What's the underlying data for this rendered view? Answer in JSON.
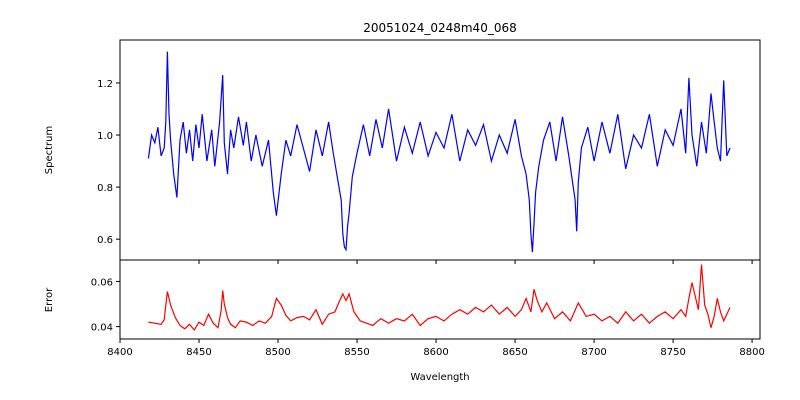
{
  "chart_data": [
    {
      "panel": "top",
      "type": "line",
      "title": "20051024_0248m40_068",
      "xlabel": "",
      "ylabel": "Spectrum",
      "xlim": [
        8400,
        8805
      ],
      "ylim": [
        0.52,
        1.365
      ],
      "xticks": [
        8400,
        8450,
        8500,
        8550,
        8600,
        8650,
        8700,
        8750,
        8800
      ],
      "xtick_labels_visible": false,
      "yticks": [
        0.6,
        0.8,
        1.0,
        1.2
      ],
      "ytick_labels": [
        "0.6",
        "0.8",
        "1.0",
        "1.2"
      ],
      "grid": false,
      "series": [
        {
          "color": "#0000ff",
          "x": [
            8418,
            8420,
            8422,
            8424,
            8426,
            8428,
            8429,
            8430,
            8431,
            8432,
            8434,
            8436,
            8438,
            8440,
            8442,
            8444,
            8446,
            8448,
            8450,
            8452,
            8455,
            8458,
            8460,
            8463,
            8465,
            8466,
            8468,
            8470,
            8472,
            8475,
            8478,
            8480,
            8483,
            8486,
            8490,
            8494,
            8497,
            8499,
            8502,
            8505,
            8508,
            8512,
            8516,
            8520,
            8524,
            8528,
            8532,
            8535,
            8538,
            8540,
            8541,
            8542,
            8543,
            8544,
            8545,
            8547,
            8550,
            8554,
            8558,
            8562,
            8566,
            8570,
            8575,
            8580,
            8585,
            8590,
            8595,
            8600,
            8605,
            8610,
            8615,
            8620,
            8625,
            8630,
            8635,
            8640,
            8645,
            8650,
            8654,
            8657,
            8659,
            8660,
            8661,
            8662,
            8663,
            8665,
            8668,
            8672,
            8676,
            8680,
            8684,
            8688,
            8689,
            8690,
            8692,
            8696,
            8700,
            8705,
            8710,
            8715,
            8720,
            8725,
            8730,
            8735,
            8740,
            8745,
            8750,
            8755,
            8758,
            8760,
            8762,
            8765,
            8768,
            8771,
            8774,
            8776,
            8778,
            8780,
            8782,
            8784,
            8786
          ],
          "y": [
            0.91,
            1.0,
            0.97,
            1.03,
            0.92,
            0.95,
            1.05,
            1.32,
            1.08,
            0.98,
            0.85,
            0.76,
            0.98,
            1.05,
            0.93,
            1.02,
            0.9,
            1.04,
            0.95,
            1.08,
            0.9,
            1.02,
            0.88,
            1.05,
            1.23,
            0.97,
            0.85,
            1.02,
            0.95,
            1.07,
            0.96,
            1.05,
            0.9,
            1.0,
            0.88,
            0.98,
            0.78,
            0.69,
            0.85,
            0.98,
            0.92,
            1.04,
            0.95,
            0.86,
            1.02,
            0.92,
            1.05,
            0.93,
            0.82,
            0.75,
            0.62,
            0.57,
            0.56,
            0.65,
            0.7,
            0.84,
            0.93,
            1.04,
            0.92,
            1.06,
            0.95,
            1.1,
            0.9,
            1.03,
            0.93,
            1.05,
            0.92,
            1.01,
            0.95,
            1.08,
            0.9,
            1.02,
            0.96,
            1.04,
            0.9,
            1.0,
            0.93,
            1.06,
            0.92,
            0.85,
            0.75,
            0.62,
            0.55,
            0.66,
            0.78,
            0.88,
            0.98,
            1.05,
            0.9,
            1.07,
            0.92,
            0.75,
            0.63,
            0.82,
            0.95,
            1.03,
            0.9,
            1.05,
            0.93,
            1.08,
            0.87,
            1.0,
            0.95,
            1.08,
            0.88,
            1.02,
            0.96,
            1.1,
            0.93,
            1.22,
            1.0,
            0.88,
            1.05,
            0.93,
            1.16,
            1.05,
            0.95,
            0.9,
            1.21,
            0.92,
            0.95
          ]
        }
      ]
    },
    {
      "panel": "bottom",
      "type": "line",
      "title": "",
      "xlabel": "Wavelength",
      "ylabel": "Error",
      "xlim": [
        8400,
        8805
      ],
      "ylim": [
        0.0345,
        0.0695
      ],
      "xticks": [
        8400,
        8450,
        8500,
        8550,
        8600,
        8650,
        8700,
        8750,
        8800
      ],
      "xtick_labels": [
        "8400",
        "8450",
        "8500",
        "8550",
        "8600",
        "8650",
        "8700",
        "8750",
        "8800"
      ],
      "yticks": [
        0.04,
        0.06
      ],
      "ytick_labels": [
        "0.04",
        "0.06"
      ],
      "grid": false,
      "series": [
        {
          "color": "#ff0000",
          "x": [
            8418,
            8422,
            8426,
            8428,
            8429,
            8430,
            8432,
            8435,
            8438,
            8441,
            8444,
            8447,
            8450,
            8453,
            8456,
            8459,
            8462,
            8464,
            8465,
            8466,
            8468,
            8470,
            8473,
            8476,
            8480,
            8484,
            8488,
            8492,
            8496,
            8499,
            8502,
            8505,
            8508,
            8512,
            8516,
            8520,
            8524,
            8528,
            8532,
            8536,
            8539,
            8541,
            8543,
            8545,
            8548,
            8552,
            8556,
            8560,
            8565,
            8570,
            8575,
            8580,
            8585,
            8590,
            8595,
            8600,
            8605,
            8610,
            8615,
            8620,
            8625,
            8630,
            8635,
            8640,
            8645,
            8650,
            8654,
            8657,
            8660,
            8662,
            8664,
            8667,
            8670,
            8675,
            8680,
            8685,
            8690,
            8695,
            8700,
            8705,
            8710,
            8715,
            8720,
            8725,
            8730,
            8735,
            8740,
            8745,
            8750,
            8755,
            8758,
            8760,
            8762,
            8764,
            8766,
            8768,
            8770,
            8772,
            8774,
            8776,
            8778,
            8780,
            8782,
            8784,
            8786
          ],
          "y": [
            0.042,
            0.0415,
            0.041,
            0.043,
            0.0495,
            0.0555,
            0.0495,
            0.044,
            0.0405,
            0.039,
            0.041,
            0.0385,
            0.042,
            0.0405,
            0.0455,
            0.0415,
            0.0395,
            0.047,
            0.056,
            0.05,
            0.044,
            0.041,
            0.0395,
            0.0425,
            0.042,
            0.0405,
            0.0425,
            0.0415,
            0.0445,
            0.0525,
            0.0495,
            0.045,
            0.0425,
            0.044,
            0.0445,
            0.043,
            0.0475,
            0.041,
            0.0455,
            0.0465,
            0.0515,
            0.0545,
            0.0515,
            0.0545,
            0.0465,
            0.0425,
            0.0415,
            0.0405,
            0.0435,
            0.0415,
            0.0435,
            0.0425,
            0.0455,
            0.0405,
            0.0435,
            0.0445,
            0.0425,
            0.0455,
            0.0475,
            0.0455,
            0.0485,
            0.0465,
            0.0495,
            0.0455,
            0.0485,
            0.0445,
            0.0475,
            0.0525,
            0.0465,
            0.0565,
            0.0515,
            0.0465,
            0.0505,
            0.0435,
            0.0465,
            0.0425,
            0.0505,
            0.0445,
            0.0455,
            0.0425,
            0.0445,
            0.0415,
            0.0465,
            0.0425,
            0.0455,
            0.0415,
            0.0445,
            0.0465,
            0.0435,
            0.0475,
            0.0445,
            0.0525,
            0.0595,
            0.0535,
            0.0475,
            0.0675,
            0.0495,
            0.0455,
            0.0395,
            0.0445,
            0.0525,
            0.0465,
            0.0425,
            0.0455,
            0.0485
          ]
        }
      ]
    }
  ]
}
